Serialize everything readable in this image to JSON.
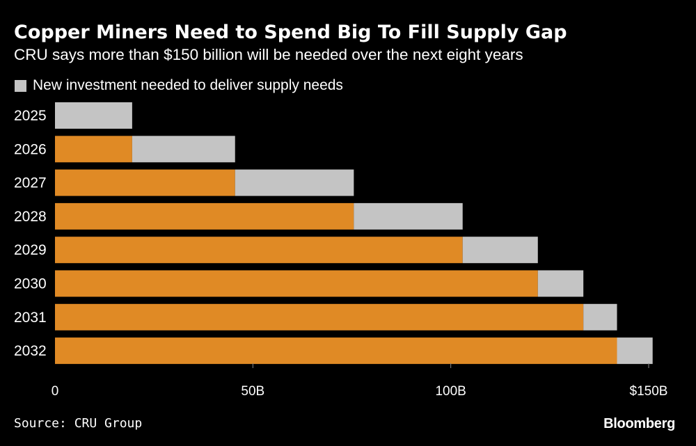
{
  "header": {
    "title": "Copper Miners Need to Spend Big To Fill Supply Gap",
    "subtitle": "CRU says more than $150 billion will be needed over the next eight years"
  },
  "legend": {
    "label": "New investment needed to deliver supply needs"
  },
  "footer": {
    "source": "Source: CRU Group",
    "brand": "Bloomberg"
  },
  "colors": {
    "background": "#000000",
    "cumulative": "#e08a25",
    "new_investment": "#c4c4c4",
    "text": "#ffffff"
  },
  "chart_data": {
    "type": "bar",
    "orientation": "horizontal",
    "stacked": true,
    "categories": [
      "2025",
      "2026",
      "2027",
      "2028",
      "2029",
      "2030",
      "2031",
      "2032"
    ],
    "series": [
      {
        "values": [
          0,
          19.5,
          45.5,
          75.5,
          103,
          122,
          133.5,
          142
        ]
      },
      {
        "name": "New investment needed to deliver supply needs",
        "values": [
          19.5,
          26,
          30,
          27.5,
          19,
          11.5,
          8.5,
          9
        ]
      }
    ],
    "xlim": [
      0,
      150
    ],
    "x_ticks": [
      0,
      50,
      100,
      150
    ],
    "x_tick_labels": [
      "0",
      "50B",
      "100B",
      "$150B"
    ],
    "grid": false,
    "legend_position": "top-left"
  }
}
